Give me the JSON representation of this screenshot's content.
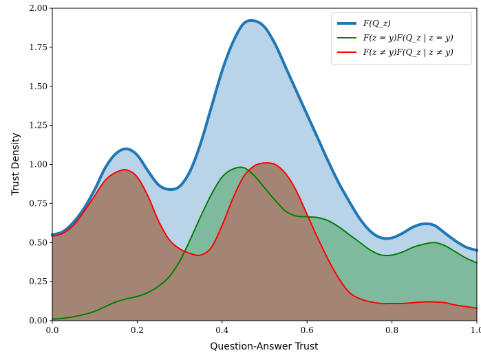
{
  "chart_data": {
    "type": "area",
    "xlabel": "Question-Answer Trust",
    "ylabel": "Trust Density",
    "xlim": [
      0.0,
      1.0
    ],
    "ylim": [
      0.0,
      2.0
    ],
    "x_ticks": [
      0.0,
      0.2,
      0.4,
      0.6,
      0.8,
      1.0
    ],
    "x_tick_labels": [
      "0.0",
      "0.2",
      "0.4",
      "0.6",
      "0.8",
      "1.0"
    ],
    "y_ticks": [
      0.0,
      0.25,
      0.5,
      0.75,
      1.0,
      1.25,
      1.5,
      1.75,
      2.0
    ],
    "y_tick_labels": [
      "0.00",
      "0.25",
      "0.50",
      "0.75",
      "1.00",
      "1.25",
      "1.50",
      "1.75",
      "2.00"
    ],
    "grid": false,
    "legend_position": "top-right",
    "series": [
      {
        "name": "F(Q_z)",
        "legend_label": "F(Q_z)",
        "color": "#1f77b4",
        "fill": "#b9d4e8",
        "line_width": 4,
        "x": [
          0.0,
          0.025,
          0.05,
          0.075,
          0.1,
          0.125,
          0.15,
          0.175,
          0.2,
          0.225,
          0.25,
          0.275,
          0.3,
          0.325,
          0.35,
          0.375,
          0.4,
          0.425,
          0.45,
          0.475,
          0.5,
          0.525,
          0.55,
          0.575,
          0.6,
          0.625,
          0.65,
          0.675,
          0.7,
          0.725,
          0.75,
          0.775,
          0.8,
          0.825,
          0.85,
          0.875,
          0.9,
          0.925,
          0.95,
          0.975,
          1.0
        ],
        "y": [
          0.55,
          0.57,
          0.63,
          0.72,
          0.84,
          0.98,
          1.07,
          1.1,
          1.06,
          0.96,
          0.87,
          0.84,
          0.86,
          0.96,
          1.14,
          1.37,
          1.6,
          1.78,
          1.9,
          1.92,
          1.88,
          1.77,
          1.62,
          1.47,
          1.32,
          1.17,
          1.02,
          0.88,
          0.76,
          0.65,
          0.57,
          0.53,
          0.53,
          0.56,
          0.6,
          0.62,
          0.61,
          0.56,
          0.51,
          0.47,
          0.45
        ]
      },
      {
        "name": "F(z = y)F(Q_z | z = y)",
        "legend_label": "F(z = y)F(Q_z | z = y)",
        "color": "#008000",
        "fill": "#7fba9f",
        "line_width": 2,
        "x": [
          0.0,
          0.025,
          0.05,
          0.075,
          0.1,
          0.125,
          0.15,
          0.175,
          0.2,
          0.225,
          0.25,
          0.275,
          0.3,
          0.325,
          0.35,
          0.375,
          0.4,
          0.425,
          0.45,
          0.475,
          0.5,
          0.525,
          0.55,
          0.575,
          0.6,
          0.625,
          0.65,
          0.675,
          0.7,
          0.725,
          0.75,
          0.775,
          0.8,
          0.825,
          0.85,
          0.875,
          0.9,
          0.925,
          0.95,
          0.975,
          1.0
        ],
        "y": [
          0.01,
          0.015,
          0.025,
          0.04,
          0.06,
          0.09,
          0.12,
          0.14,
          0.155,
          0.18,
          0.22,
          0.28,
          0.38,
          0.52,
          0.67,
          0.81,
          0.92,
          0.97,
          0.98,
          0.93,
          0.85,
          0.77,
          0.7,
          0.67,
          0.665,
          0.66,
          0.64,
          0.6,
          0.55,
          0.5,
          0.45,
          0.42,
          0.42,
          0.44,
          0.47,
          0.49,
          0.5,
          0.48,
          0.44,
          0.4,
          0.37
        ]
      },
      {
        "name": "F(z ≠ y)F(Q_z | z ≠ y)",
        "legend_label": "F(z ≠ y)F(Q_z | z ≠ y)",
        "color": "#ff0000",
        "fill": "#a48472",
        "line_width": 2,
        "x": [
          0.0,
          0.025,
          0.05,
          0.075,
          0.1,
          0.125,
          0.15,
          0.175,
          0.2,
          0.225,
          0.25,
          0.275,
          0.3,
          0.325,
          0.35,
          0.375,
          0.4,
          0.425,
          0.45,
          0.475,
          0.5,
          0.525,
          0.55,
          0.575,
          0.6,
          0.625,
          0.65,
          0.675,
          0.7,
          0.725,
          0.75,
          0.775,
          0.8,
          0.825,
          0.85,
          0.875,
          0.9,
          0.925,
          0.95,
          0.975,
          1.0
        ],
        "y": [
          0.54,
          0.56,
          0.61,
          0.7,
          0.8,
          0.9,
          0.95,
          0.965,
          0.92,
          0.8,
          0.64,
          0.52,
          0.46,
          0.43,
          0.42,
          0.47,
          0.61,
          0.78,
          0.92,
          0.99,
          1.01,
          1.0,
          0.94,
          0.83,
          0.68,
          0.53,
          0.39,
          0.27,
          0.18,
          0.14,
          0.12,
          0.11,
          0.11,
          0.11,
          0.115,
          0.12,
          0.12,
          0.115,
          0.1,
          0.09,
          0.08
        ]
      }
    ],
    "fill_order": [
      0,
      1,
      2
    ]
  }
}
